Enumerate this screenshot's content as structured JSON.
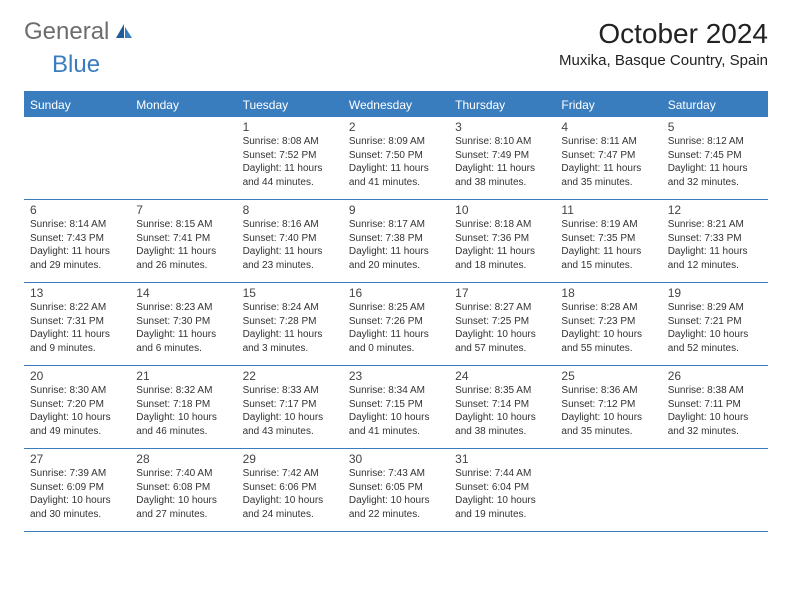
{
  "brand": {
    "general": "General",
    "blue": "Blue"
  },
  "title": {
    "month": "October 2024",
    "location": "Muxika, Basque Country, Spain"
  },
  "colors": {
    "accent": "#3a7dbf",
    "text": "#333333",
    "muted": "#6d6d6d",
    "bg": "#ffffff"
  },
  "weekdays": [
    "Sunday",
    "Monday",
    "Tuesday",
    "Wednesday",
    "Thursday",
    "Friday",
    "Saturday"
  ],
  "weeks": [
    [
      {
        "num": "",
        "sunrise": "",
        "sunset": "",
        "daylight": ""
      },
      {
        "num": "",
        "sunrise": "",
        "sunset": "",
        "daylight": ""
      },
      {
        "num": "1",
        "sunrise": "Sunrise: 8:08 AM",
        "sunset": "Sunset: 7:52 PM",
        "daylight": "Daylight: 11 hours and 44 minutes."
      },
      {
        "num": "2",
        "sunrise": "Sunrise: 8:09 AM",
        "sunset": "Sunset: 7:50 PM",
        "daylight": "Daylight: 11 hours and 41 minutes."
      },
      {
        "num": "3",
        "sunrise": "Sunrise: 8:10 AM",
        "sunset": "Sunset: 7:49 PM",
        "daylight": "Daylight: 11 hours and 38 minutes."
      },
      {
        "num": "4",
        "sunrise": "Sunrise: 8:11 AM",
        "sunset": "Sunset: 7:47 PM",
        "daylight": "Daylight: 11 hours and 35 minutes."
      },
      {
        "num": "5",
        "sunrise": "Sunrise: 8:12 AM",
        "sunset": "Sunset: 7:45 PM",
        "daylight": "Daylight: 11 hours and 32 minutes."
      }
    ],
    [
      {
        "num": "6",
        "sunrise": "Sunrise: 8:14 AM",
        "sunset": "Sunset: 7:43 PM",
        "daylight": "Daylight: 11 hours and 29 minutes."
      },
      {
        "num": "7",
        "sunrise": "Sunrise: 8:15 AM",
        "sunset": "Sunset: 7:41 PM",
        "daylight": "Daylight: 11 hours and 26 minutes."
      },
      {
        "num": "8",
        "sunrise": "Sunrise: 8:16 AM",
        "sunset": "Sunset: 7:40 PM",
        "daylight": "Daylight: 11 hours and 23 minutes."
      },
      {
        "num": "9",
        "sunrise": "Sunrise: 8:17 AM",
        "sunset": "Sunset: 7:38 PM",
        "daylight": "Daylight: 11 hours and 20 minutes."
      },
      {
        "num": "10",
        "sunrise": "Sunrise: 8:18 AM",
        "sunset": "Sunset: 7:36 PM",
        "daylight": "Daylight: 11 hours and 18 minutes."
      },
      {
        "num": "11",
        "sunrise": "Sunrise: 8:19 AM",
        "sunset": "Sunset: 7:35 PM",
        "daylight": "Daylight: 11 hours and 15 minutes."
      },
      {
        "num": "12",
        "sunrise": "Sunrise: 8:21 AM",
        "sunset": "Sunset: 7:33 PM",
        "daylight": "Daylight: 11 hours and 12 minutes."
      }
    ],
    [
      {
        "num": "13",
        "sunrise": "Sunrise: 8:22 AM",
        "sunset": "Sunset: 7:31 PM",
        "daylight": "Daylight: 11 hours and 9 minutes."
      },
      {
        "num": "14",
        "sunrise": "Sunrise: 8:23 AM",
        "sunset": "Sunset: 7:30 PM",
        "daylight": "Daylight: 11 hours and 6 minutes."
      },
      {
        "num": "15",
        "sunrise": "Sunrise: 8:24 AM",
        "sunset": "Sunset: 7:28 PM",
        "daylight": "Daylight: 11 hours and 3 minutes."
      },
      {
        "num": "16",
        "sunrise": "Sunrise: 8:25 AM",
        "sunset": "Sunset: 7:26 PM",
        "daylight": "Daylight: 11 hours and 0 minutes."
      },
      {
        "num": "17",
        "sunrise": "Sunrise: 8:27 AM",
        "sunset": "Sunset: 7:25 PM",
        "daylight": "Daylight: 10 hours and 57 minutes."
      },
      {
        "num": "18",
        "sunrise": "Sunrise: 8:28 AM",
        "sunset": "Sunset: 7:23 PM",
        "daylight": "Daylight: 10 hours and 55 minutes."
      },
      {
        "num": "19",
        "sunrise": "Sunrise: 8:29 AM",
        "sunset": "Sunset: 7:21 PM",
        "daylight": "Daylight: 10 hours and 52 minutes."
      }
    ],
    [
      {
        "num": "20",
        "sunrise": "Sunrise: 8:30 AM",
        "sunset": "Sunset: 7:20 PM",
        "daylight": "Daylight: 10 hours and 49 minutes."
      },
      {
        "num": "21",
        "sunrise": "Sunrise: 8:32 AM",
        "sunset": "Sunset: 7:18 PM",
        "daylight": "Daylight: 10 hours and 46 minutes."
      },
      {
        "num": "22",
        "sunrise": "Sunrise: 8:33 AM",
        "sunset": "Sunset: 7:17 PM",
        "daylight": "Daylight: 10 hours and 43 minutes."
      },
      {
        "num": "23",
        "sunrise": "Sunrise: 8:34 AM",
        "sunset": "Sunset: 7:15 PM",
        "daylight": "Daylight: 10 hours and 41 minutes."
      },
      {
        "num": "24",
        "sunrise": "Sunrise: 8:35 AM",
        "sunset": "Sunset: 7:14 PM",
        "daylight": "Daylight: 10 hours and 38 minutes."
      },
      {
        "num": "25",
        "sunrise": "Sunrise: 8:36 AM",
        "sunset": "Sunset: 7:12 PM",
        "daylight": "Daylight: 10 hours and 35 minutes."
      },
      {
        "num": "26",
        "sunrise": "Sunrise: 8:38 AM",
        "sunset": "Sunset: 7:11 PM",
        "daylight": "Daylight: 10 hours and 32 minutes."
      }
    ],
    [
      {
        "num": "27",
        "sunrise": "Sunrise: 7:39 AM",
        "sunset": "Sunset: 6:09 PM",
        "daylight": "Daylight: 10 hours and 30 minutes."
      },
      {
        "num": "28",
        "sunrise": "Sunrise: 7:40 AM",
        "sunset": "Sunset: 6:08 PM",
        "daylight": "Daylight: 10 hours and 27 minutes."
      },
      {
        "num": "29",
        "sunrise": "Sunrise: 7:42 AM",
        "sunset": "Sunset: 6:06 PM",
        "daylight": "Daylight: 10 hours and 24 minutes."
      },
      {
        "num": "30",
        "sunrise": "Sunrise: 7:43 AM",
        "sunset": "Sunset: 6:05 PM",
        "daylight": "Daylight: 10 hours and 22 minutes."
      },
      {
        "num": "31",
        "sunrise": "Sunrise: 7:44 AM",
        "sunset": "Sunset: 6:04 PM",
        "daylight": "Daylight: 10 hours and 19 minutes."
      },
      {
        "num": "",
        "sunrise": "",
        "sunset": "",
        "daylight": ""
      },
      {
        "num": "",
        "sunrise": "",
        "sunset": "",
        "daylight": ""
      }
    ]
  ]
}
